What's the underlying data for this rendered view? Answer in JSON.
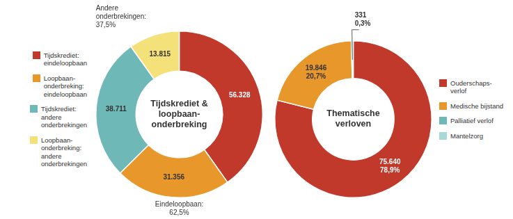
{
  "chart_data": [
    {
      "type": "doughnut",
      "title": "Tijdskrediet &\nloopbaan-\nonderbreking",
      "categories": [
        "Tijdskrediet:\neindeloopbaan",
        "Loopbaan-\nonderbreking:\neindeloopbaan",
        "Tijdskrediet:\nandere\nonderbrekingen",
        "Loopbaan-\nonderbreking:\nandere\nonderbrekingen"
      ],
      "values": [
        56328,
        31356,
        38711,
        13815
      ],
      "value_labels": [
        "56.328",
        "31.356",
        "38.711",
        "13.815"
      ],
      "colors": [
        "#c0392b",
        "#e8972b",
        "#6fb8b8",
        "#f5e17a"
      ],
      "annotations": [
        "Andere\nonderbrekingen:\n37,5%",
        "Eindeloopbaan:\n62,5%"
      ],
      "data_labels": true,
      "legend": "left"
    },
    {
      "type": "doughnut",
      "title": "Thematische\nverloven",
      "categories": [
        "Ouderschaps-\nverlof",
        "Medische bijstand",
        "Palliatief verlof",
        "Mantelzorg"
      ],
      "values": [
        75640,
        19846,
        331,
        50
      ],
      "value_labels": [
        "75.640\n78,9%",
        "19.846\n20,7%",
        "331\n0,3%",
        null
      ],
      "colors": [
        "#c0392b",
        "#e8972b",
        "#6fb8b8",
        "#a8d8d8"
      ],
      "data_labels": true,
      "legend": "right"
    }
  ]
}
